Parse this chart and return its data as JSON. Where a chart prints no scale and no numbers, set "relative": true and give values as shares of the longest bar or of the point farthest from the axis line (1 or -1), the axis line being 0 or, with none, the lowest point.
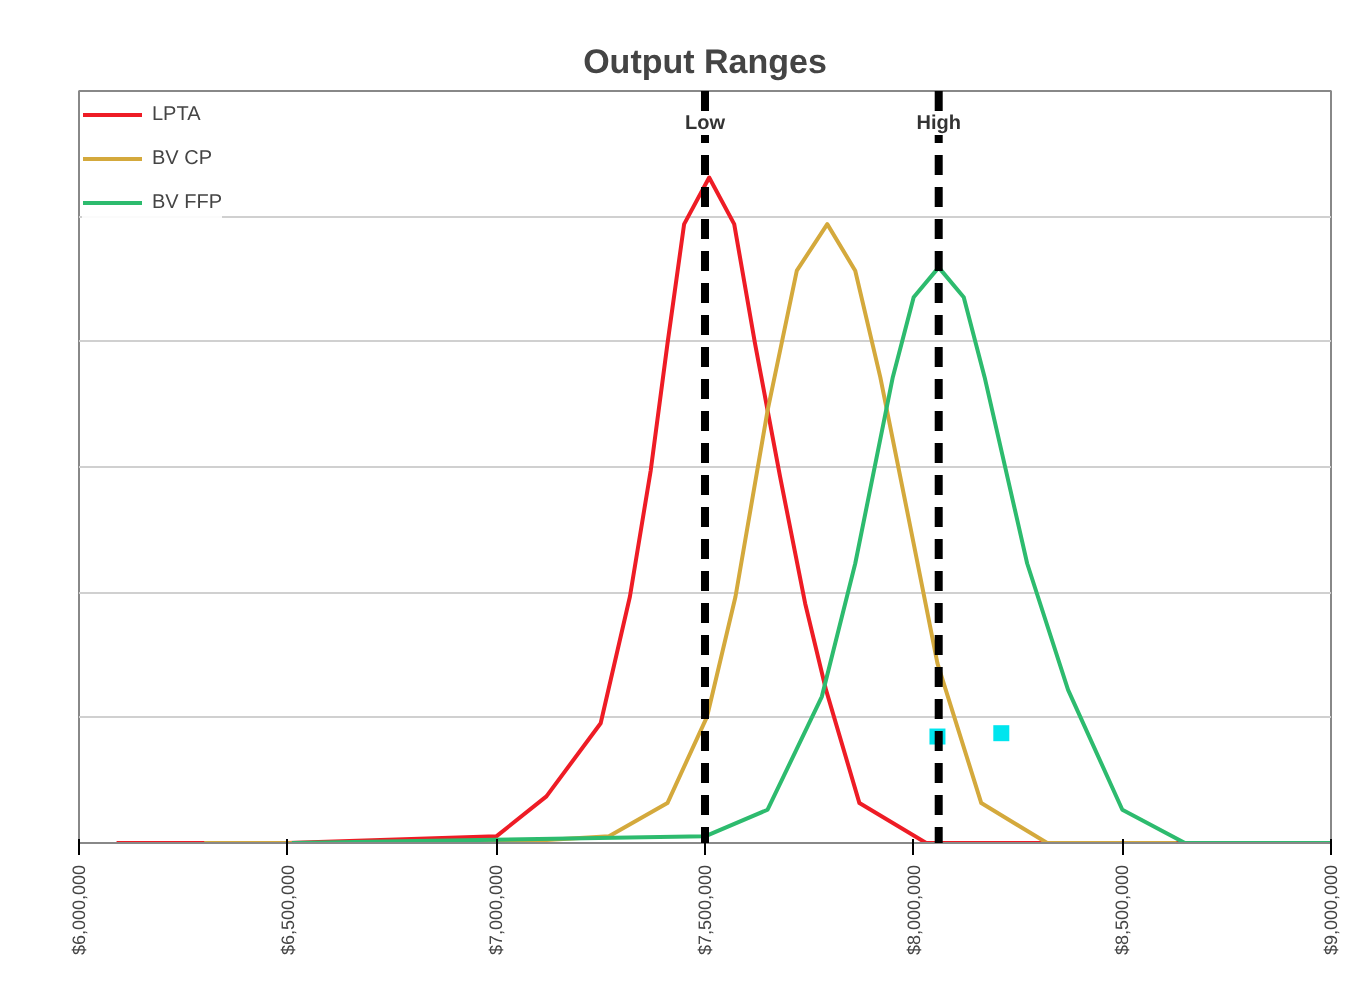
{
  "chart_data": {
    "type": "line",
    "title": "Output Ranges",
    "relative": true,
    "xlim": [
      6000000,
      9000000
    ],
    "xticks": [
      {
        "value": 6000000,
        "label": "$6,000,000"
      },
      {
        "value": 6500000,
        "label": "$6,500,000"
      },
      {
        "value": 7000000,
        "label": "$7,000,000"
      },
      {
        "value": 7500000,
        "label": "$7,500,000"
      },
      {
        "value": 8000000,
        "label": "$8,000,000"
      },
      {
        "value": 8500000,
        "label": "$8,500,000"
      },
      {
        "value": 9000000,
        "label": "$9,000,000"
      }
    ],
    "series": [
      {
        "name": "LPTA",
        "color": "#ee1c25",
        "x": [
          6090000,
          6500000,
          7000000,
          7120000,
          7250000,
          7320000,
          7370000,
          7410000,
          7450000,
          7510000,
          7570000,
          7620000,
          7680000,
          7740000,
          7790000,
          7870000,
          8030000,
          8500000,
          9000000
        ],
        "values": [
          0,
          0,
          0.01,
          0.07,
          0.18,
          0.37,
          0.56,
          0.75,
          0.93,
          1.0,
          0.93,
          0.75,
          0.55,
          0.36,
          0.23,
          0.06,
          0,
          0,
          0
        ]
      },
      {
        "name": "BV CP",
        "color": "#d4a93c",
        "x": [
          6300000,
          7000000,
          7270000,
          7410000,
          7505000,
          7573000,
          7650000,
          7720000,
          7793000,
          7860000,
          7920000,
          8000000,
          8057000,
          8162000,
          8320000,
          8630000
        ],
        "values": [
          0,
          0,
          0.01,
          0.06,
          0.19,
          0.37,
          0.65,
          0.86,
          0.93,
          0.86,
          0.7,
          0.45,
          0.27,
          0.06,
          0,
          0
        ]
      },
      {
        "name": "BV FFP",
        "color": "#2dbb6e",
        "x": [
          6510000,
          7500000,
          7650000,
          7780000,
          7860000,
          7950000,
          8000000,
          8060000,
          8120000,
          8170000,
          8272000,
          8370000,
          8500000,
          8650000,
          9000000
        ],
        "values": [
          0,
          0.01,
          0.05,
          0.22,
          0.42,
          0.7,
          0.82,
          0.865,
          0.82,
          0.7,
          0.42,
          0.23,
          0.05,
          0,
          0
        ]
      },
      {
        "type": "scatter",
        "color": "#00e5ee",
        "marker": "square",
        "x": [
          8057000,
          8210000
        ],
        "values": [
          0.16,
          0.165
        ]
      }
    ],
    "ref_lines": [
      {
        "axis": "x",
        "value": 7500000,
        "label": "Low",
        "color": "#000000",
        "line_style": "dashed"
      },
      {
        "axis": "x",
        "value": 8060000,
        "label": "High",
        "color": "#000000",
        "line_style": "dashed"
      }
    ],
    "grid": "y",
    "legend": "top left"
  }
}
